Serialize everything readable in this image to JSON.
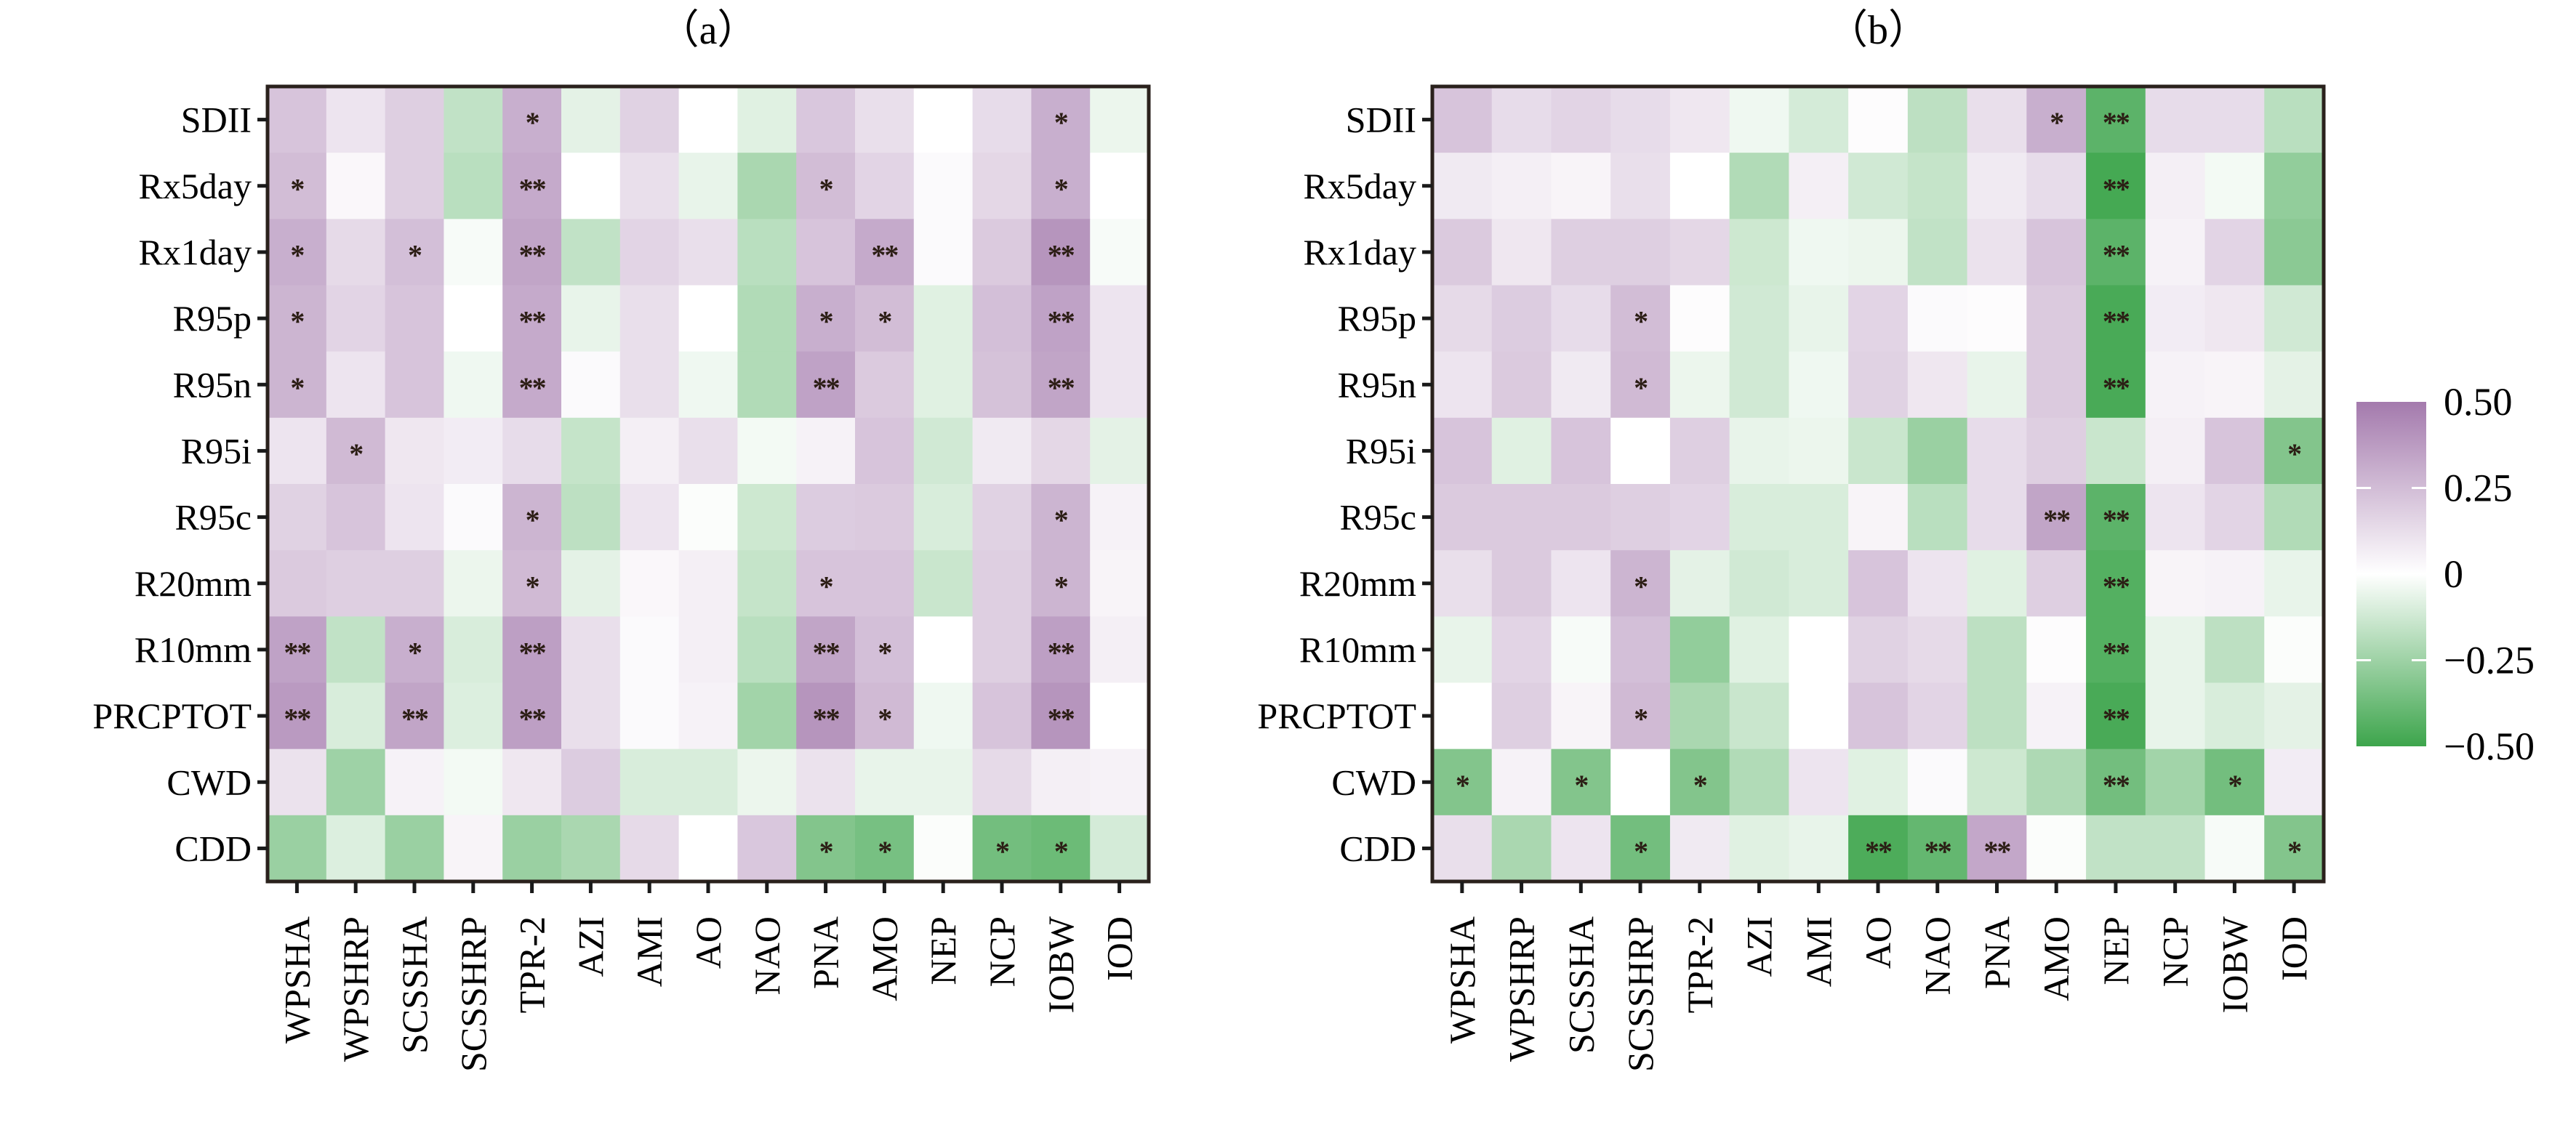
{
  "chart_data": [
    {
      "type": "heatmap",
      "title": "（a）",
      "rows": [
        "SDII",
        "Rx5day",
        "Rx1day",
        "R95p",
        "R95n",
        "R95i",
        "R95c",
        "R20mm",
        "R10mm",
        "PRCPTOT",
        "CWD",
        "CDD"
      ],
      "columns": [
        "WPSHA",
        "WPSHRP",
        "SCSSHA",
        "SCSSHRP",
        "TPR-2",
        "AZI",
        "AMI",
        "AO",
        "NAO",
        "PNA",
        "AMO",
        "NEP",
        "NCP",
        "IOBW",
        "IOD"
      ],
      "values": [
        [
          0.22,
          0.1,
          0.18,
          -0.16,
          0.3,
          -0.07,
          0.17,
          0.0,
          -0.08,
          0.21,
          0.12,
          0.0,
          0.13,
          0.3,
          -0.05
        ],
        [
          0.25,
          0.03,
          0.18,
          -0.18,
          0.32,
          0.0,
          0.12,
          -0.06,
          -0.22,
          0.25,
          0.16,
          0.02,
          0.15,
          0.3,
          0.0
        ],
        [
          0.3,
          0.14,
          0.24,
          -0.02,
          0.34,
          -0.16,
          0.16,
          0.12,
          -0.18,
          0.22,
          0.32,
          0.02,
          0.2,
          0.4,
          -0.02
        ],
        [
          0.28,
          0.16,
          0.22,
          0.0,
          0.32,
          -0.06,
          0.12,
          0.0,
          -0.2,
          0.3,
          0.25,
          -0.08,
          0.24,
          0.35,
          0.1
        ],
        [
          0.28,
          0.1,
          0.22,
          -0.04,
          0.32,
          0.02,
          0.12,
          -0.04,
          -0.2,
          0.35,
          0.2,
          -0.08,
          0.23,
          0.34,
          0.1
        ],
        [
          0.1,
          0.26,
          0.09,
          0.07,
          0.13,
          -0.15,
          0.06,
          0.12,
          -0.03,
          0.05,
          0.22,
          -0.12,
          0.08,
          0.15,
          -0.07
        ],
        [
          0.17,
          0.22,
          0.1,
          0.02,
          0.28,
          -0.17,
          0.1,
          -0.01,
          -0.13,
          0.19,
          0.2,
          -0.1,
          0.17,
          0.28,
          0.05
        ],
        [
          0.2,
          0.18,
          0.18,
          -0.05,
          0.26,
          -0.07,
          0.03,
          0.06,
          -0.15,
          0.22,
          0.22,
          -0.14,
          0.18,
          0.28,
          0.04
        ],
        [
          0.35,
          -0.16,
          0.3,
          -0.1,
          0.36,
          0.12,
          0.02,
          0.06,
          -0.18,
          0.34,
          0.24,
          0.0,
          0.18,
          0.36,
          0.06
        ],
        [
          0.38,
          -0.1,
          0.34,
          -0.09,
          0.36,
          0.12,
          0.02,
          0.05,
          -0.24,
          0.4,
          0.26,
          -0.04,
          0.22,
          0.4,
          0.0
        ],
        [
          0.11,
          -0.25,
          0.05,
          -0.03,
          0.09,
          0.19,
          -0.1,
          -0.1,
          -0.05,
          0.11,
          -0.06,
          -0.06,
          0.14,
          0.06,
          0.05
        ],
        [
          -0.26,
          -0.09,
          -0.26,
          0.04,
          -0.26,
          -0.22,
          0.14,
          0.0,
          0.21,
          -0.32,
          -0.35,
          -0.01,
          -0.36,
          -0.38,
          -0.11
        ]
      ],
      "significance": [
        [
          "",
          "",
          "",
          "",
          "*",
          "",
          "",
          "",
          "",
          "",
          "",
          "",
          "",
          "*",
          ""
        ],
        [
          "*",
          "",
          "",
          "",
          "**",
          "",
          "",
          "",
          "",
          "*",
          "",
          "",
          "",
          "*",
          ""
        ],
        [
          "*",
          "",
          "*",
          "",
          "**",
          "",
          "",
          "",
          "",
          "",
          "**",
          "",
          "",
          "**",
          ""
        ],
        [
          "*",
          "",
          "",
          "",
          "**",
          "",
          "",
          "",
          "",
          "*",
          "*",
          "",
          "",
          "**",
          ""
        ],
        [
          "*",
          "",
          "",
          "",
          "**",
          "",
          "",
          "",
          "",
          "**",
          "",
          "",
          "",
          "**",
          ""
        ],
        [
          "",
          "*",
          "",
          "",
          "",
          "",
          "",
          "",
          "",
          "",
          "",
          "",
          "",
          "",
          ""
        ],
        [
          "",
          "",
          "",
          "",
          "*",
          "",
          "",
          "",
          "",
          "",
          "",
          "",
          "",
          "*",
          ""
        ],
        [
          "",
          "",
          "",
          "",
          "*",
          "",
          "",
          "",
          "",
          "*",
          "",
          "",
          "",
          "*",
          ""
        ],
        [
          "**",
          "",
          "*",
          "",
          "**",
          "",
          "",
          "",
          "",
          "**",
          "*",
          "",
          "",
          "**",
          ""
        ],
        [
          "**",
          "",
          "**",
          "",
          "**",
          "",
          "",
          "",
          "",
          "**",
          "*",
          "",
          "",
          "**",
          ""
        ],
        [
          "",
          "",
          "",
          "",
          "",
          "",
          "",
          "",
          "",
          "",
          "",
          "",
          "",
          "",
          ""
        ],
        [
          "",
          "",
          "",
          "",
          "",
          "",
          "",
          "",
          "",
          "*",
          "*",
          "",
          "*",
          "*",
          ""
        ]
      ]
    },
    {
      "type": "heatmap",
      "title": "（b）",
      "rows": [
        "SDII",
        "Rx5day",
        "Rx1day",
        "R95p",
        "R95n",
        "R95i",
        "R95c",
        "R20mm",
        "R10mm",
        "PRCPTOT",
        "CWD",
        "CDD"
      ],
      "columns": [
        "WPSHA",
        "WPSHRP",
        "SCSSHA",
        "SCSSHRP",
        "TPR-2",
        "AZI",
        "AMI",
        "AO",
        "NAO",
        "PNA",
        "AMO",
        "NEP",
        "NCP",
        "IOBW",
        "IOD"
      ],
      "values": [
        [
          0.22,
          0.13,
          0.16,
          0.13,
          0.09,
          -0.04,
          -0.11,
          0.01,
          -0.17,
          0.12,
          0.3,
          -0.42,
          0.13,
          0.13,
          -0.18
        ],
        [
          0.08,
          0.06,
          0.04,
          0.12,
          0.0,
          -0.2,
          0.06,
          -0.12,
          -0.15,
          0.08,
          0.13,
          -0.48,
          0.06,
          -0.03,
          -0.28
        ],
        [
          0.2,
          0.09,
          0.18,
          0.18,
          0.15,
          -0.13,
          -0.04,
          -0.05,
          -0.16,
          0.11,
          0.22,
          -0.42,
          0.05,
          0.16,
          -0.3
        ],
        [
          0.14,
          0.19,
          0.13,
          0.25,
          0.01,
          -0.12,
          -0.06,
          0.16,
          0.02,
          0.01,
          0.2,
          -0.47,
          0.07,
          0.09,
          -0.12
        ],
        [
          0.1,
          0.2,
          0.08,
          0.26,
          -0.05,
          -0.12,
          -0.04,
          0.17,
          0.09,
          -0.06,
          0.2,
          -0.47,
          0.05,
          0.04,
          -0.07
        ],
        [
          0.22,
          -0.08,
          0.22,
          0.0,
          0.18,
          -0.06,
          -0.05,
          -0.14,
          -0.26,
          0.13,
          0.18,
          -0.14,
          0.06,
          0.22,
          -0.32
        ],
        [
          0.2,
          0.2,
          0.2,
          0.18,
          0.16,
          -0.1,
          -0.1,
          0.04,
          -0.18,
          0.13,
          0.34,
          -0.42,
          0.1,
          0.16,
          -0.2
        ],
        [
          0.12,
          0.2,
          0.1,
          0.28,
          -0.07,
          -0.12,
          -0.1,
          0.22,
          0.1,
          -0.08,
          0.18,
          -0.44,
          0.04,
          0.05,
          -0.06
        ],
        [
          -0.06,
          0.16,
          -0.02,
          0.24,
          -0.28,
          -0.08,
          0.0,
          0.17,
          0.14,
          -0.17,
          0.01,
          -0.44,
          -0.06,
          -0.17,
          -0.01
        ],
        [
          0.0,
          0.18,
          0.04,
          0.26,
          -0.22,
          -0.14,
          0.0,
          0.22,
          0.16,
          -0.17,
          0.05,
          -0.47,
          -0.06,
          -0.1,
          -0.07
        ],
        [
          -0.32,
          0.05,
          -0.32,
          0.0,
          -0.32,
          -0.2,
          0.1,
          -0.08,
          0.02,
          -0.13,
          -0.21,
          -0.36,
          -0.24,
          -0.36,
          0.07
        ],
        [
          0.12,
          -0.22,
          0.1,
          -0.36,
          0.08,
          -0.08,
          -0.06,
          -0.46,
          -0.4,
          0.33,
          -0.01,
          -0.16,
          -0.16,
          -0.02,
          -0.32
        ]
      ],
      "significance": [
        [
          "",
          "",
          "",
          "",
          "",
          "",
          "",
          "",
          "",
          "",
          "*",
          "**",
          "",
          "",
          ""
        ],
        [
          "",
          "",
          "",
          "",
          "",
          "",
          "",
          "",
          "",
          "",
          "",
          "**",
          "",
          "",
          ""
        ],
        [
          "",
          "",
          "",
          "",
          "",
          "",
          "",
          "",
          "",
          "",
          "",
          "**",
          "",
          "",
          ""
        ],
        [
          "",
          "",
          "",
          "*",
          "",
          "",
          "",
          "",
          "",
          "",
          "",
          "**",
          "",
          "",
          ""
        ],
        [
          "",
          "",
          "",
          "*",
          "",
          "",
          "",
          "",
          "",
          "",
          "",
          "**",
          "",
          "",
          ""
        ],
        [
          "",
          "",
          "",
          "",
          "",
          "",
          "",
          "",
          "",
          "",
          "",
          "",
          "",
          "",
          "*"
        ],
        [
          "",
          "",
          "",
          "",
          "",
          "",
          "",
          "",
          "",
          "",
          "**",
          "**",
          "",
          "",
          ""
        ],
        [
          "",
          "",
          "",
          "*",
          "",
          "",
          "",
          "",
          "",
          "",
          "",
          "**",
          "",
          "",
          ""
        ],
        [
          "",
          "",
          "",
          "",
          "",
          "",
          "",
          "",
          "",
          "",
          "",
          "**",
          "",
          "",
          ""
        ],
        [
          "",
          "",
          "",
          "*",
          "",
          "",
          "",
          "",
          "",
          "",
          "",
          "**",
          "",
          "",
          ""
        ],
        [
          "*",
          "",
          "*",
          "",
          "*",
          "",
          "",
          "",
          "",
          "",
          "",
          "**",
          "",
          "*",
          ""
        ],
        [
          "",
          "",
          "",
          "*",
          "",
          "",
          "",
          "**",
          "**",
          "**",
          "",
          "",
          "",
          "",
          "*"
        ]
      ]
    }
  ],
  "colorbar": {
    "range": [
      -0.5,
      0.5
    ],
    "ticks": [
      {
        "value": 0.5,
        "label": "0.50"
      },
      {
        "value": 0.25,
        "label": "0.25"
      },
      {
        "value": 0,
        "label": "0"
      },
      {
        "value": -0.25,
        "label": "−0.25"
      },
      {
        "value": -0.5,
        "label": "−0.50"
      }
    ],
    "high_color": "#a47aad",
    "mid_color": "#ffffff",
    "low_color": "#3da54c"
  }
}
